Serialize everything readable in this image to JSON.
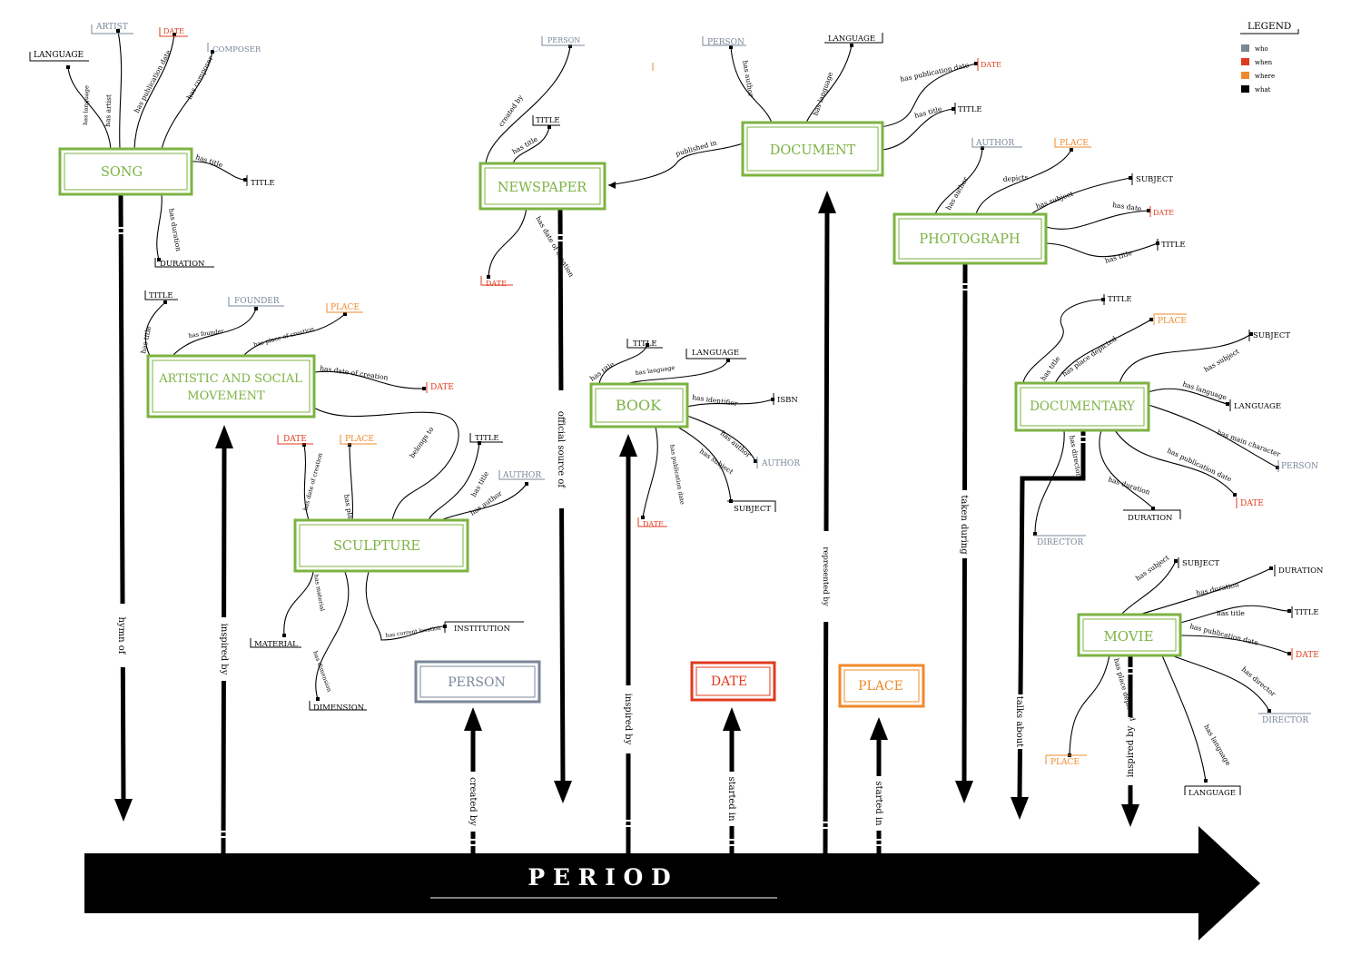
{
  "colors": {
    "who": "#7a8799",
    "when": "#e03a1e",
    "where": "#ef8a2b",
    "what": "#000000",
    "entity": "#7cb342"
  },
  "legend": {
    "title": "LEGEND",
    "items": [
      {
        "label": "who",
        "color": "#7a8799"
      },
      {
        "label": "when",
        "color": "#e03a1e"
      },
      {
        "label": "where",
        "color": "#ef8a2b"
      },
      {
        "label": "what",
        "color": "#000000"
      }
    ]
  },
  "timeline": {
    "label": "P E R I O D"
  },
  "nodes": {
    "song": "SONG",
    "newspaper": "NEWSPAPER",
    "document": "DOCUMENT",
    "photograph": "PHOTOGRAPH",
    "movement_line1": "ARTISTIC AND SOCIAL",
    "movement_line2": "MOVEMENT",
    "sculpture": "SCULPTURE",
    "book": "BOOK",
    "documentary": "DOCUMENTARY",
    "movie": "MOVIE",
    "person": "PERSON",
    "date": "DATE",
    "place": "PLACE"
  },
  "props": {
    "song": {
      "language": "LANGUAGE",
      "artist": "ARTIST",
      "date": "DATE",
      "composer": "COMPOSER",
      "title": "TITLE",
      "duration": "DURATION",
      "e_language": "has language",
      "e_artist": "has artist",
      "e_date": "has publication date",
      "e_composer": "has composer",
      "e_title": "has title",
      "e_duration": "has duration"
    },
    "newspaper": {
      "person": "PERSON",
      "title": "TITLE",
      "date": "DATE",
      "e_person": "created by",
      "e_title": "has title",
      "e_date": "has date of creation"
    },
    "document": {
      "person": "PERSON",
      "language": "LANGUAGE",
      "date": "DATE",
      "title": "TITLE",
      "e_person": "has author",
      "e_language": "has language",
      "e_date": "has publication date",
      "e_title": "has title",
      "e_published": "published in"
    },
    "photograph": {
      "author": "AUTHOR",
      "place": "PLACE",
      "subject": "SUBJECT",
      "date": "DATE",
      "title": "TITLE",
      "e_author": "has author",
      "e_place": "depicts",
      "e_subject": "has subject",
      "e_date": "has date",
      "e_title": "has title"
    },
    "movement": {
      "title": "TITLE",
      "founder": "FOUNDER",
      "place": "PLACE",
      "date": "DATE",
      "e_title": "has title",
      "e_founder": "has founder",
      "e_place": "has place of creation",
      "e_date": "has date of creation"
    },
    "sculpture": {
      "date": "DATE",
      "place": "PLACE",
      "title": "TITLE",
      "author": "AUTHOR",
      "material": "MATERIAL",
      "dimension": "DIMENSION",
      "institution": "INSTITUTION",
      "e_date": "has date of creation",
      "e_place": "has place",
      "e_title": "has title",
      "e_author": "has author",
      "e_material": "has material",
      "e_dimension": "has dimension",
      "e_institution": "has current location",
      "e_belongs": "belongs to"
    },
    "book": {
      "title": "TITLE",
      "language": "LANGUAGE",
      "isbn": "ISBN",
      "author": "AUTHOR",
      "subject": "SUBJECT",
      "date": "DATE",
      "e_title": "has title",
      "e_language": "has language",
      "e_isbn": "has identifier",
      "e_author": "has author",
      "e_subject": "has subject",
      "e_date": "has publication date"
    },
    "documentary": {
      "title": "TITLE",
      "place": "PLACE",
      "subject": "SUBJECT",
      "language": "LANGUAGE",
      "person": "PERSON",
      "date": "DATE",
      "duration": "DURATION",
      "director": "DIRECTOR",
      "e_title": "has title",
      "e_place": "has place depicted",
      "e_subject": "has subject",
      "e_language": "has language",
      "e_person": "has main character",
      "e_date": "has publication date",
      "e_duration": "has duration",
      "e_director": "has director"
    },
    "movie": {
      "subject": "SUBJECT",
      "duration": "DURATION",
      "title": "TITLE",
      "date": "DATE",
      "director": "DIRECTOR",
      "language": "LANGUAGE",
      "place": "PLACE",
      "e_subject": "has subject",
      "e_duration": "has duration",
      "e_title": "has title",
      "e_date": "has publication date",
      "e_director": "has director",
      "e_language": "has language",
      "e_place": "has place depicted"
    }
  },
  "vertical": {
    "song": "hymn of",
    "movement": "inspired by",
    "person": "created by",
    "newspaper": "official source of",
    "book": "inspired by",
    "date": "started in",
    "document": "represented by",
    "place": "started in",
    "photograph": "taken during",
    "documentary": "talks about",
    "movie": "inspired by"
  }
}
